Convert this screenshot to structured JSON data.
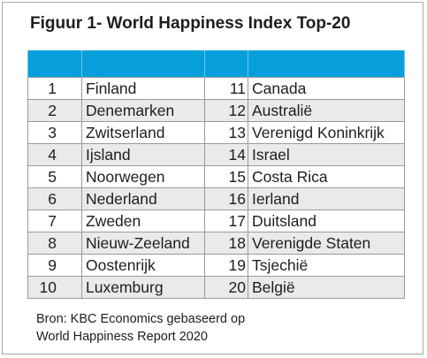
{
  "title": "Figuur 1- World Happiness Index Top-20",
  "table": {
    "header_color": "#069fdc",
    "stripe_color": "#eaeaea",
    "rows": [
      {
        "rank_a": "1",
        "country_a": "Finland",
        "rank_b": "11",
        "country_b": "Canada"
      },
      {
        "rank_a": "2",
        "country_a": "Denemarken",
        "rank_b": "12",
        "country_b": "Australië"
      },
      {
        "rank_a": "3",
        "country_a": "Zwitserland",
        "rank_b": "13",
        "country_b": "Verenigd Koninkrijk"
      },
      {
        "rank_a": "4",
        "country_a": "Ijsland",
        "rank_b": "14",
        "country_b": "Israel"
      },
      {
        "rank_a": "5",
        "country_a": "Noorwegen",
        "rank_b": "15",
        "country_b": "Costa Rica"
      },
      {
        "rank_a": "6",
        "country_a": "Nederland",
        "rank_b": "16",
        "country_b": "Ierland"
      },
      {
        "rank_a": "7",
        "country_a": "Zweden",
        "rank_b": "17",
        "country_b": "Duitsland"
      },
      {
        "rank_a": "8",
        "country_a": "Nieuw-Zeeland",
        "rank_b": "18",
        "country_b": "Verenigde Staten"
      },
      {
        "rank_a": "9",
        "country_a": "Oostenrijk",
        "rank_b": "19",
        "country_b": "Tsjechië"
      },
      {
        "rank_a": "10",
        "country_a": "Luxemburg",
        "rank_b": "20",
        "country_b": "België"
      }
    ]
  },
  "source": {
    "line1": "Bron: KBC Economics gebaseerd op",
    "line2": "World Happiness Report 2020"
  }
}
